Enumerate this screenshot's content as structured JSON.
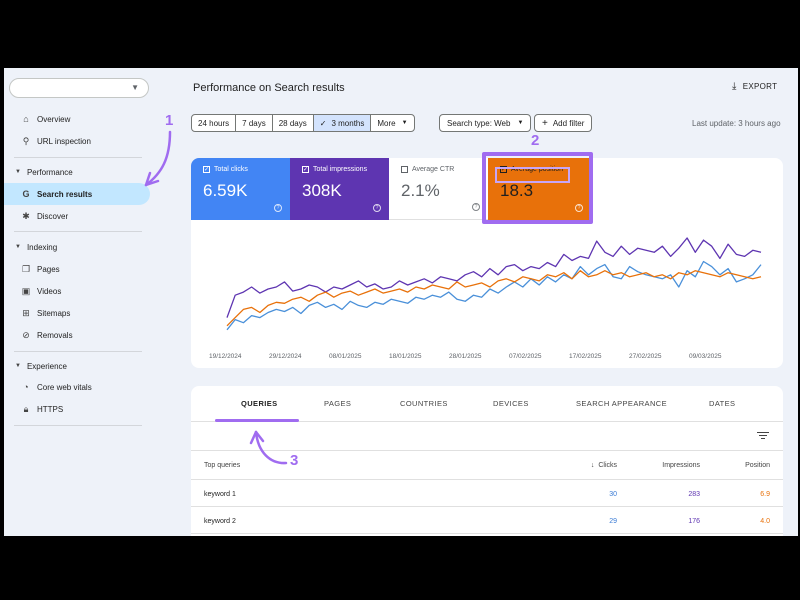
{
  "sidebar": {
    "top_items": [
      {
        "icon": "home-icon",
        "label": "Overview"
      },
      {
        "icon": "search-icon",
        "label": "URL inspection"
      }
    ],
    "sections": [
      {
        "title": "Performance",
        "items": [
          {
            "icon": "google-g-icon",
            "label": "Search results",
            "active": true
          },
          {
            "icon": "sparkle-icon",
            "label": "Discover"
          }
        ]
      },
      {
        "title": "Indexing",
        "items": [
          {
            "icon": "pages-icon",
            "label": "Pages"
          },
          {
            "icon": "video-icon",
            "label": "Videos"
          },
          {
            "icon": "sitemap-icon",
            "label": "Sitemaps"
          },
          {
            "icon": "removal-icon",
            "label": "Removals"
          }
        ]
      },
      {
        "title": "Experience",
        "items": [
          {
            "icon": "speedometer-icon",
            "label": "Core web vitals"
          },
          {
            "icon": "lock-icon",
            "label": "HTTPS"
          }
        ]
      }
    ]
  },
  "header": {
    "title": "Performance on Search results",
    "export_label": "EXPORT"
  },
  "filters": {
    "ranges": [
      "24 hours",
      "7 days",
      "28 days",
      "3 months",
      "More"
    ],
    "selected_range": "3 months",
    "search_type": "Search type: Web",
    "add_filter": "Add filter",
    "last_update": "Last update: 3 hours ago"
  },
  "metrics": {
    "clicks": {
      "label": "Total clicks",
      "value": "6.59K",
      "color": "#4285f4"
    },
    "impressions": {
      "label": "Total impressions",
      "value": "308K",
      "color": "#5e35b1"
    },
    "ctr": {
      "label": "Average CTR",
      "value": "2.1%"
    },
    "position": {
      "label": "Average position",
      "value": "18.3",
      "color": "#e8710a"
    }
  },
  "chart_data": {
    "type": "line",
    "x_labels": [
      "19/12/2024",
      "29/12/2024",
      "08/01/2025",
      "18/01/2025",
      "28/01/2025",
      "07/02/2025",
      "17/02/2025",
      "27/02/2025",
      "09/03/2025"
    ],
    "series": [
      {
        "name": "Total clicks",
        "color": "#4a90d9",
        "values": [
          0.08,
          0.18,
          0.15,
          0.22,
          0.2,
          0.25,
          0.28,
          0.26,
          0.3,
          0.24,
          0.32,
          0.35,
          0.3,
          0.33,
          0.28,
          0.36,
          0.32,
          0.3,
          0.35,
          0.33,
          0.38,
          0.36,
          0.34,
          0.4,
          0.38,
          0.42,
          0.4,
          0.45,
          0.38,
          0.36,
          0.42,
          0.4,
          0.48,
          0.44,
          0.5,
          0.55,
          0.5,
          0.58,
          0.52,
          0.6,
          0.55,
          0.62,
          0.58,
          0.7,
          0.62,
          0.68,
          0.72,
          0.6,
          0.58,
          0.7,
          0.65,
          0.62,
          0.6,
          0.58,
          0.62,
          0.5,
          0.66,
          0.6,
          0.75,
          0.7,
          0.62,
          0.68,
          0.55,
          0.58,
          0.62,
          0.72
        ]
      },
      {
        "name": "Total impressions",
        "color": "#5e35b1",
        "values": [
          0.2,
          0.42,
          0.45,
          0.5,
          0.44,
          0.48,
          0.5,
          0.55,
          0.46,
          0.48,
          0.52,
          0.5,
          0.45,
          0.5,
          0.48,
          0.52,
          0.56,
          0.5,
          0.53,
          0.48,
          0.5,
          0.56,
          0.52,
          0.55,
          0.58,
          0.54,
          0.6,
          0.58,
          0.56,
          0.62,
          0.65,
          0.6,
          0.68,
          0.62,
          0.7,
          0.72,
          0.66,
          0.7,
          0.68,
          0.74,
          0.7,
          0.82,
          0.76,
          0.8,
          0.78,
          0.95,
          0.84,
          0.8,
          0.9,
          0.82,
          0.88,
          0.86,
          0.84,
          0.9,
          0.8,
          0.88,
          0.98,
          0.84,
          0.96,
          0.9,
          0.78,
          0.92,
          0.82,
          0.8,
          0.86,
          0.84
        ]
      },
      {
        "name": "Average position",
        "color": "#e8710a",
        "values": [
          0.12,
          0.2,
          0.28,
          0.3,
          0.25,
          0.32,
          0.35,
          0.34,
          0.38,
          0.4,
          0.36,
          0.42,
          0.45,
          0.4,
          0.44,
          0.46,
          0.42,
          0.45,
          0.48,
          0.44,
          0.46,
          0.48,
          0.45,
          0.5,
          0.48,
          0.52,
          0.5,
          0.48,
          0.55,
          0.5,
          0.52,
          0.54,
          0.5,
          0.56,
          0.58,
          0.55,
          0.6,
          0.58,
          0.56,
          0.62,
          0.6,
          0.64,
          0.58,
          0.66,
          0.6,
          0.62,
          0.66,
          0.62,
          0.64,
          0.6,
          0.62,
          0.64,
          0.6,
          0.62,
          0.58,
          0.64,
          0.62,
          0.66,
          0.64,
          0.62,
          0.6,
          0.64,
          0.62,
          0.6,
          0.58,
          0.6
        ]
      }
    ]
  },
  "tabs": [
    "QUERIES",
    "PAGES",
    "COUNTRIES",
    "DEVICES",
    "SEARCH APPEARANCE",
    "DATES"
  ],
  "table": {
    "headers": {
      "query": "Top queries",
      "clicks": "Clicks",
      "impressions": "Impressions",
      "position": "Position"
    },
    "rows": [
      {
        "query": "keyword 1",
        "clicks": "30",
        "impressions": "283",
        "position": "6.9"
      },
      {
        "query": "keyword 2",
        "clicks": "29",
        "impressions": "176",
        "position": "4.0"
      }
    ]
  },
  "annotations": {
    "one": "1",
    "two": "2",
    "three": "3",
    "color": "#a06cf0"
  }
}
